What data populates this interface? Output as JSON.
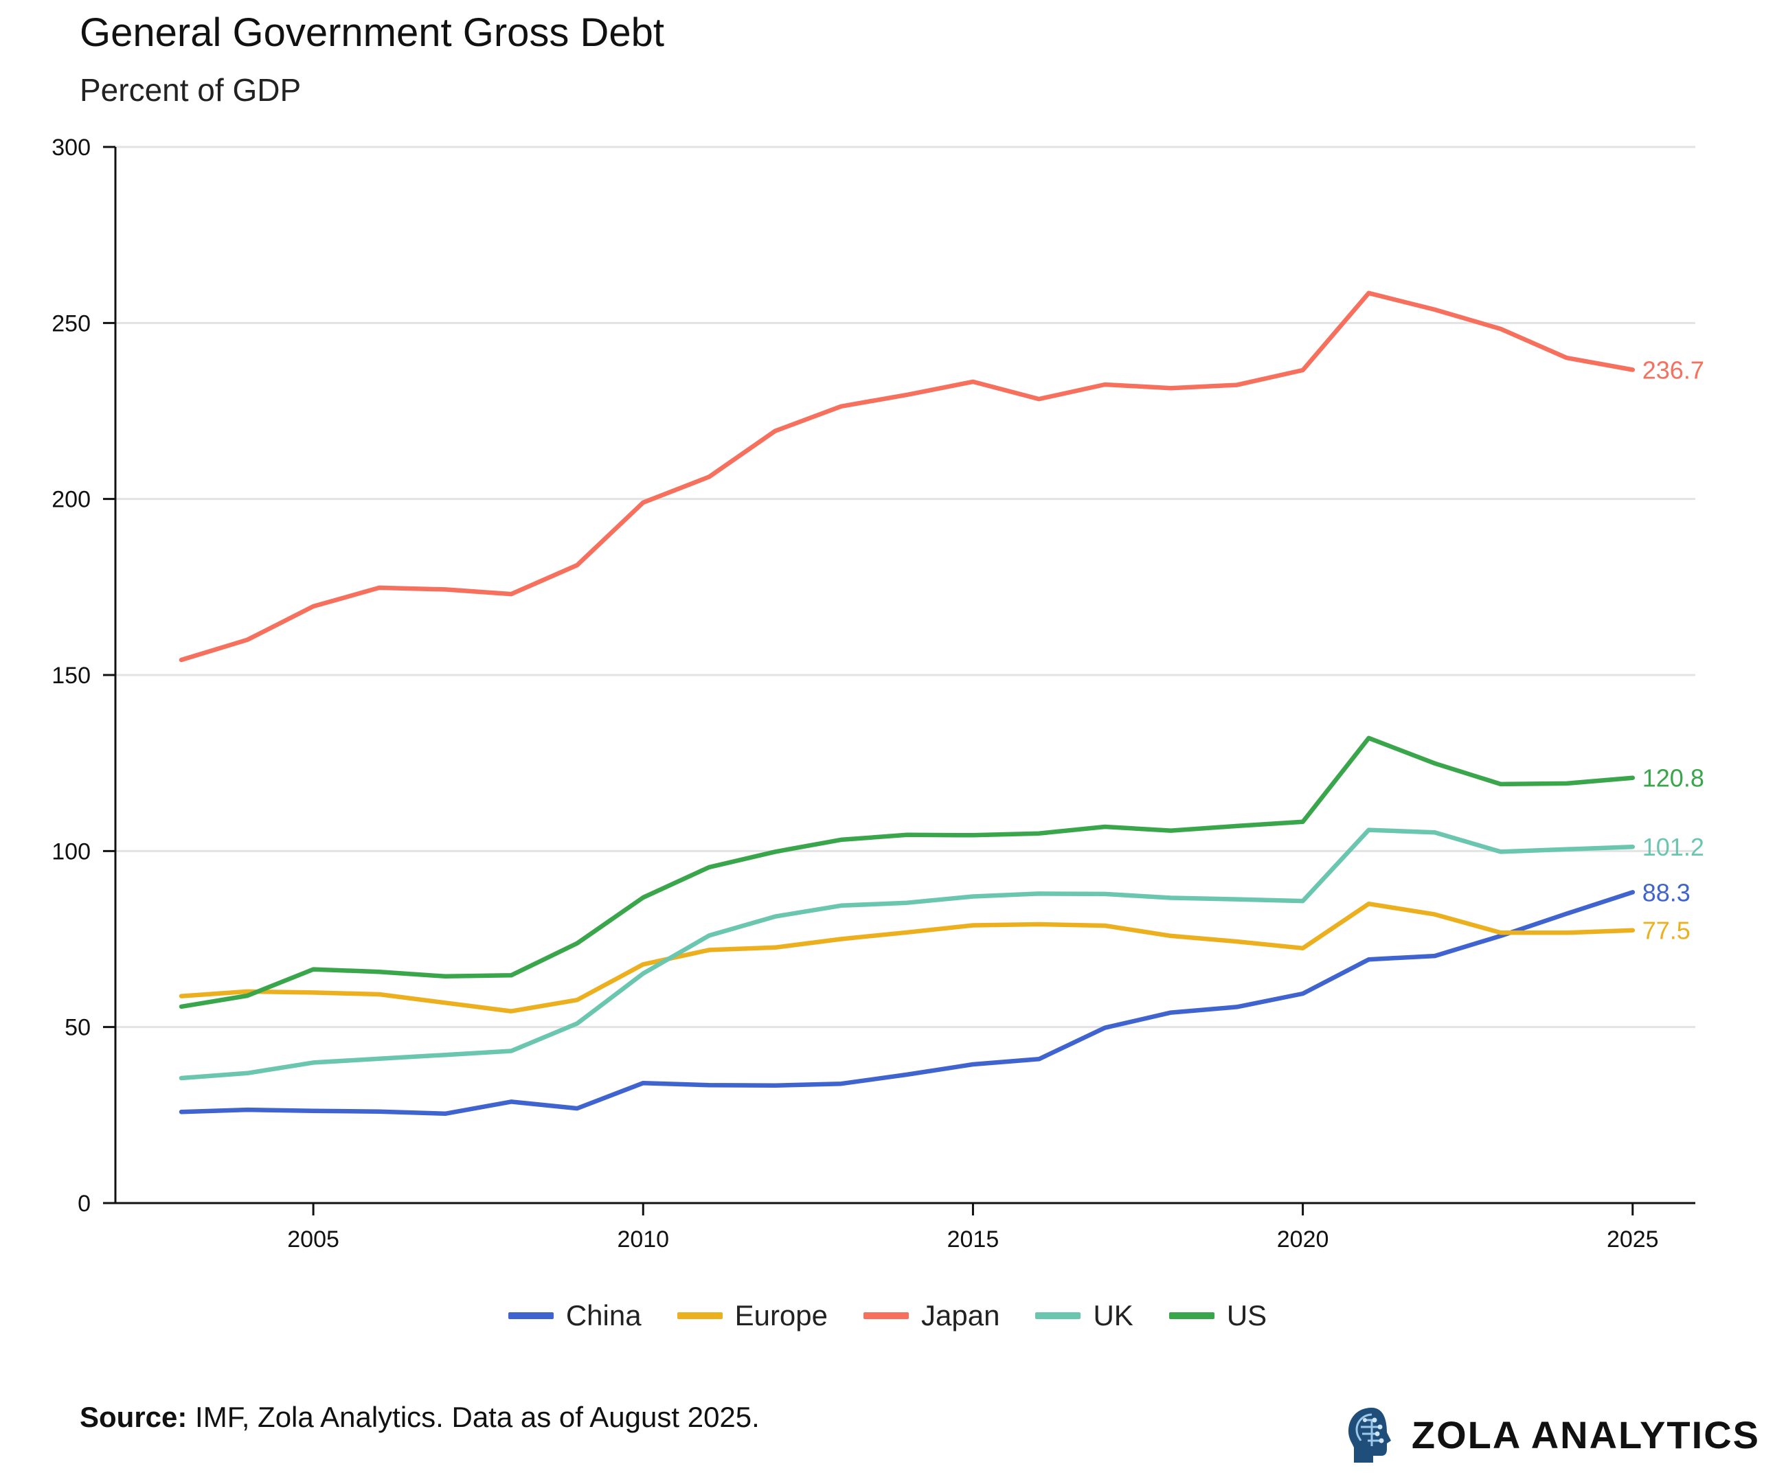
{
  "header": {
    "title": "General Government Gross Debt",
    "subtitle": "Percent of GDP"
  },
  "footer": {
    "source_label": "Source:",
    "source_text": "IMF, Zola Analytics. Data as of August 2025.",
    "brand": "ZOLA ANALYTICS"
  },
  "chart_data": {
    "type": "line",
    "title": "General Government Gross Debt",
    "subtitle": "Percent of GDP",
    "xlabel": "",
    "ylabel": "",
    "xlim": [
      2002,
      2025.95
    ],
    "ylim": [
      0,
      300
    ],
    "xticks": [
      2005,
      2010,
      2015,
      2020,
      2025
    ],
    "yticks": [
      0,
      50,
      100,
      150,
      200,
      250,
      300
    ],
    "grid": "horizontal",
    "legend_position": "bottom-center",
    "x": [
      2003,
      2004,
      2005,
      2006,
      2007,
      2008,
      2009,
      2010,
      2011,
      2012,
      2013,
      2014,
      2015,
      2016,
      2017,
      2018,
      2019,
      2020,
      2021,
      2022,
      2023,
      2024,
      2025
    ],
    "series": [
      {
        "name": "China",
        "color": "#3f63cf",
        "end_label": "88.3",
        "values": [
          25.9,
          26.5,
          26.2,
          26.0,
          25.4,
          28.8,
          26.9,
          34.1,
          33.5,
          33.4,
          33.9,
          36.5,
          39.4,
          40.9,
          49.8,
          54.1,
          55.7,
          59.5,
          69.2,
          70.2,
          75.9,
          82.2,
          88.3
        ]
      },
      {
        "name": "Europe",
        "color": "#ecb01f",
        "end_label": "77.5",
        "values": [
          58.8,
          60.1,
          59.8,
          59.3,
          56.9,
          54.5,
          57.7,
          67.8,
          71.9,
          72.6,
          75.0,
          76.9,
          78.9,
          79.2,
          78.8,
          75.9,
          74.3,
          72.4,
          85.0,
          82.0,
          76.8,
          76.8,
          77.5
        ]
      },
      {
        "name": "Japan",
        "color": "#f76f5d",
        "end_label": "236.7",
        "values": [
          154.3,
          160.0,
          169.5,
          174.8,
          174.3,
          173.0,
          181.2,
          199.0,
          206.3,
          219.3,
          226.3,
          229.6,
          233.3,
          228.4,
          232.5,
          231.5,
          232.4,
          236.6,
          258.5,
          253.8,
          248.3,
          240.1,
          236.7
        ]
      },
      {
        "name": "UK",
        "color": "#6bc6b0",
        "end_label": "101.2",
        "values": [
          35.5,
          36.9,
          39.9,
          41.0,
          42.1,
          43.2,
          51.0,
          65.2,
          76.0,
          81.4,
          84.5,
          85.3,
          87.1,
          87.9,
          87.8,
          86.7,
          86.3,
          85.8,
          106.0,
          105.3,
          99.8,
          100.5,
          101.2
        ]
      },
      {
        "name": "US",
        "color": "#3aa64c",
        "end_label": "120.8",
        "values": [
          55.8,
          58.9,
          66.4,
          65.7,
          64.4,
          64.7,
          73.8,
          86.8,
          95.4,
          99.8,
          103.2,
          104.6,
          104.5,
          105.0,
          106.9,
          105.8,
          107.1,
          108.3,
          132.1,
          124.9,
          119.0,
          119.2,
          120.8
        ]
      }
    ]
  }
}
